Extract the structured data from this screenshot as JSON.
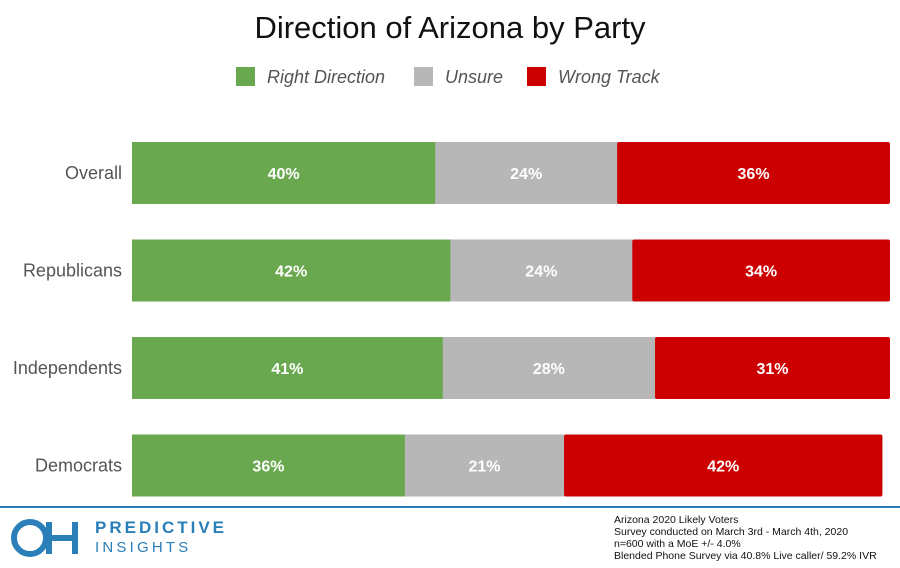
{
  "chart_data": {
    "type": "bar",
    "orientation": "horizontal",
    "stacked": true,
    "title": "Direction of Arizona by Party",
    "categories": [
      "Overall",
      "Republicans",
      "Independents",
      "Democrats"
    ],
    "series": [
      {
        "name": "Right Direction",
        "color": "#6aa84f",
        "values": [
          40,
          42,
          41,
          36
        ],
        "labels": [
          "40%",
          "42%",
          "41%",
          "36%"
        ]
      },
      {
        "name": "Unsure",
        "color": "#b7b7b7",
        "values": [
          24,
          24,
          28,
          21
        ],
        "labels": [
          "24%",
          "24%",
          "28%",
          "21%"
        ]
      },
      {
        "name": "Wrong Track",
        "color": "#cc0000",
        "values": [
          36,
          34,
          31,
          42
        ],
        "labels": [
          "36%",
          "34%",
          "31%",
          "42%"
        ]
      }
    ],
    "xlim": [
      0,
      100
    ],
    "legend_position": "top",
    "grid": false
  },
  "brand": {
    "logo_icon": "oh-logo-icon",
    "line1": "PREDICTIVE",
    "line2": "INSIGHTS",
    "color": "#2a7fb8"
  },
  "notes": [
    "Arizona 2020 Likely Voters",
    "Survey conducted on March 3rd - March 4th, 2020",
    "n=600 with a MoE +/- 4.0%",
    "Blended Phone Survey via 40.8% Live caller/ 59.2% IVR"
  ]
}
